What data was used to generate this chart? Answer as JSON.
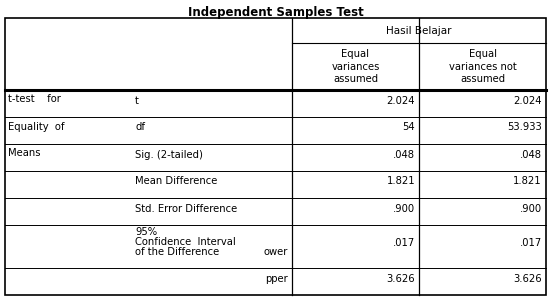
{
  "title": "Independent Samples Test",
  "col_header_main": "Hasil Belajar",
  "col_header_sub1": "Equal\nvariances\nassumed",
  "col_header_sub2": "Equal\nvariances not\nassumed",
  "row_label_left1": "t-test    for",
  "row_label_left2": "Equality  of",
  "row_label_left3": "Means",
  "mid_labels": [
    "t",
    "df",
    "Sig. (2-tailed)",
    "Mean Difference",
    "Std. Error Difference",
    "",
    ""
  ],
  "ci_label_line1": "95%",
  "ci_label_line2": "Confidence  Interval",
  "ci_label_line3": "of the Difference",
  "ci_sub1": "ower",
  "ci_sub2": "pper",
  "val1": [
    "2.024",
    "54",
    ".048",
    "1.821",
    ".900",
    ".017",
    "3.626"
  ],
  "val2": [
    "2.024",
    "53.933",
    ".048",
    "1.821",
    ".900",
    ".017",
    "3.626"
  ],
  "bg_color": "#ffffff",
  "border_color": "#000000",
  "font_size": 7.2,
  "title_font_size": 8.5
}
